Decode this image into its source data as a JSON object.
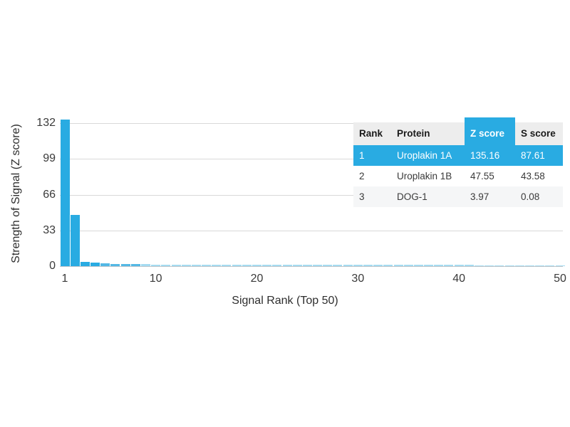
{
  "chart_data": {
    "type": "bar",
    "title": "",
    "xlabel": "Signal Rank (Top 50)",
    "ylabel": "Strength of Signal (Z score)",
    "x_ticks": [
      1,
      10,
      20,
      30,
      40,
      50
    ],
    "y_ticks": [
      0,
      33,
      66,
      99,
      132
    ],
    "xlim": [
      1,
      50
    ],
    "ylim": [
      0,
      140
    ],
    "grid": "horizontal gridlines at y ticks, no vertical grid",
    "legend_position": "none",
    "series_name": "Z score by signal rank",
    "categories": [
      1,
      2,
      3,
      4,
      5,
      6,
      7,
      8,
      9,
      10,
      11,
      12,
      13,
      14,
      15,
      16,
      17,
      18,
      19,
      20,
      21,
      22,
      23,
      24,
      25,
      26,
      27,
      28,
      29,
      30,
      31,
      32,
      33,
      34,
      35,
      36,
      37,
      38,
      39,
      40,
      41,
      42,
      43,
      44,
      45,
      46,
      47,
      48,
      49,
      50
    ],
    "values": [
      135.16,
      47.55,
      3.97,
      3.42,
      2.61,
      2.24,
      2.05,
      1.88,
      1.74,
      1.62,
      1.55,
      1.5,
      1.46,
      1.42,
      1.39,
      1.36,
      1.33,
      1.3,
      1.28,
      1.26,
      1.24,
      1.22,
      1.2,
      1.19,
      1.17,
      1.16,
      1.14,
      1.13,
      1.12,
      1.1,
      1.09,
      1.08,
      1.07,
      1.06,
      1.05,
      1.04,
      1.03,
      1.02,
      1.01,
      1.0,
      0.99,
      0.98,
      0.97,
      0.97,
      0.96,
      0.95,
      0.94,
      0.94,
      0.93,
      0.92
    ]
  },
  "table": {
    "columns": [
      "Rank",
      "Protein",
      "Z score",
      "S score"
    ],
    "highlighted_column": "Z score",
    "rows": [
      [
        "1",
        "Uroplakin 1A",
        "135.16",
        "87.61"
      ],
      [
        "2",
        "Uroplakin 1B",
        "47.55",
        "43.58"
      ],
      [
        "3",
        "DOG-1",
        "3.97",
        "0.08"
      ]
    ],
    "highlighted_row_index": 0
  },
  "colors": {
    "bar_primary": "#29ABE2",
    "bar_mid": "#53B8E5",
    "bar_faint": "#A5DBF1",
    "gridline": "#D9D9D9",
    "axis_line": "#C2C6CA",
    "table_header_bg": "#EDEDED",
    "table_highlight": "#29ABE2",
    "table_alt_row_bg": "#F5F6F7",
    "text": "#333333"
  }
}
